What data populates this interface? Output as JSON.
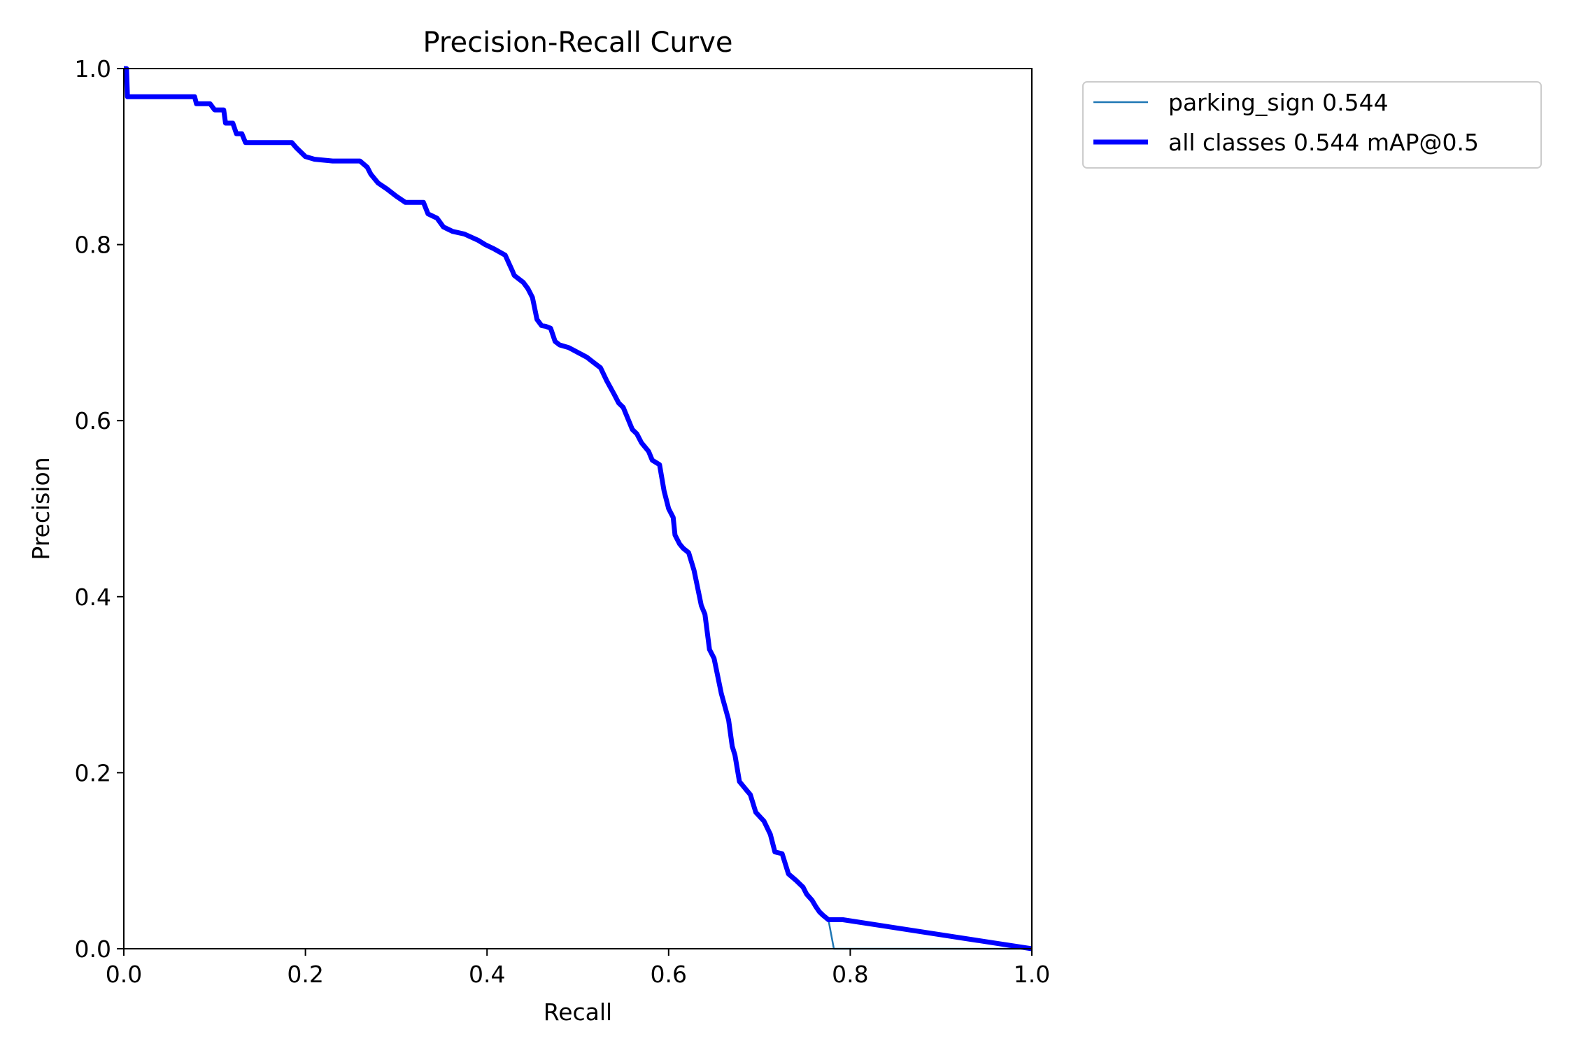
{
  "chart_data": {
    "type": "line",
    "title": "Precision-Recall Curve",
    "xlabel": "Recall",
    "ylabel": "Precision",
    "xlim": [
      0,
      1
    ],
    "ylim": [
      0,
      1
    ],
    "x_ticks": [
      "0.0",
      "0.2",
      "0.4",
      "0.6",
      "0.8",
      "1.0"
    ],
    "y_ticks": [
      "0.0",
      "0.2",
      "0.4",
      "0.6",
      "0.8",
      "1.0"
    ],
    "grid": false,
    "legend_position": "outside-upper-right",
    "series": [
      {
        "name": "parking_sign 0.544",
        "color": "#1f77b4",
        "line": "thin",
        "x": [
          0.0,
          0.003,
          0.004,
          0.006,
          0.04,
          0.078,
          0.08,
          0.095,
          0.1,
          0.11,
          0.112,
          0.12,
          0.124,
          0.13,
          0.134,
          0.15,
          0.185,
          0.19,
          0.2,
          0.21,
          0.23,
          0.26,
          0.268,
          0.272,
          0.28,
          0.29,
          0.3,
          0.31,
          0.33,
          0.335,
          0.345,
          0.352,
          0.362,
          0.375,
          0.39,
          0.398,
          0.408,
          0.42,
          0.428,
          0.43,
          0.44,
          0.445,
          0.45,
          0.455,
          0.46,
          0.465,
          0.47,
          0.475,
          0.48,
          0.49,
          0.51,
          0.515,
          0.525,
          0.532,
          0.54,
          0.545,
          0.55,
          0.56,
          0.565,
          0.57,
          0.578,
          0.582,
          0.59,
          0.595,
          0.6,
          0.605,
          0.607,
          0.612,
          0.616,
          0.622,
          0.628,
          0.632,
          0.636,
          0.64,
          0.645,
          0.65,
          0.652,
          0.658,
          0.662,
          0.666,
          0.67,
          0.673,
          0.678,
          0.682,
          0.686,
          0.69,
          0.696,
          0.705,
          0.712,
          0.717,
          0.725,
          0.732,
          0.74,
          0.748,
          0.752,
          0.758,
          0.762,
          0.766,
          0.77,
          0.776,
          0.782,
          0.787,
          0.792,
          1.0
        ],
        "y": [
          1.0,
          1.0,
          0.968,
          0.968,
          0.968,
          0.968,
          0.96,
          0.96,
          0.953,
          0.953,
          0.938,
          0.938,
          0.926,
          0.926,
          0.916,
          0.916,
          0.916,
          0.91,
          0.9,
          0.897,
          0.895,
          0.895,
          0.888,
          0.88,
          0.87,
          0.863,
          0.855,
          0.848,
          0.848,
          0.835,
          0.83,
          0.82,
          0.815,
          0.812,
          0.805,
          0.8,
          0.795,
          0.788,
          0.77,
          0.765,
          0.757,
          0.75,
          0.74,
          0.715,
          0.708,
          0.707,
          0.705,
          0.69,
          0.686,
          0.683,
          0.672,
          0.668,
          0.66,
          0.645,
          0.63,
          0.62,
          0.615,
          0.59,
          0.585,
          0.575,
          0.565,
          0.555,
          0.55,
          0.52,
          0.5,
          0.49,
          0.47,
          0.46,
          0.455,
          0.45,
          0.43,
          0.41,
          0.39,
          0.38,
          0.34,
          0.33,
          0.32,
          0.29,
          0.275,
          0.26,
          0.23,
          0.22,
          0.19,
          0.185,
          0.18,
          0.175,
          0.155,
          0.145,
          0.13,
          0.11,
          0.108,
          0.085,
          0.078,
          0.07,
          0.062,
          0.055,
          0.048,
          0.042,
          0.038,
          0.033,
          0.0,
          0.0,
          0.0,
          0.0
        ]
      },
      {
        "name": "all classes 0.544 mAP@0.5",
        "color": "#0000ff",
        "line": "thick",
        "x": [
          0.0,
          0.003,
          0.004,
          0.006,
          0.04,
          0.078,
          0.08,
          0.095,
          0.1,
          0.11,
          0.112,
          0.12,
          0.124,
          0.13,
          0.134,
          0.15,
          0.185,
          0.19,
          0.2,
          0.21,
          0.23,
          0.26,
          0.268,
          0.272,
          0.28,
          0.29,
          0.3,
          0.31,
          0.33,
          0.335,
          0.345,
          0.352,
          0.362,
          0.375,
          0.39,
          0.398,
          0.408,
          0.42,
          0.428,
          0.43,
          0.44,
          0.445,
          0.45,
          0.455,
          0.46,
          0.465,
          0.47,
          0.475,
          0.48,
          0.49,
          0.51,
          0.515,
          0.525,
          0.532,
          0.54,
          0.545,
          0.55,
          0.56,
          0.565,
          0.57,
          0.578,
          0.582,
          0.59,
          0.595,
          0.6,
          0.605,
          0.607,
          0.612,
          0.616,
          0.622,
          0.628,
          0.632,
          0.636,
          0.64,
          0.645,
          0.65,
          0.652,
          0.658,
          0.662,
          0.666,
          0.67,
          0.673,
          0.678,
          0.682,
          0.686,
          0.69,
          0.696,
          0.705,
          0.712,
          0.717,
          0.725,
          0.732,
          0.74,
          0.748,
          0.752,
          0.758,
          0.762,
          0.766,
          0.77,
          0.776,
          0.782,
          0.787,
          0.792,
          1.0
        ],
        "y": [
          1.0,
          1.0,
          0.968,
          0.968,
          0.968,
          0.968,
          0.96,
          0.96,
          0.953,
          0.953,
          0.938,
          0.938,
          0.926,
          0.926,
          0.916,
          0.916,
          0.916,
          0.91,
          0.9,
          0.897,
          0.895,
          0.895,
          0.888,
          0.88,
          0.87,
          0.863,
          0.855,
          0.848,
          0.848,
          0.835,
          0.83,
          0.82,
          0.815,
          0.812,
          0.805,
          0.8,
          0.795,
          0.788,
          0.77,
          0.765,
          0.757,
          0.75,
          0.74,
          0.715,
          0.708,
          0.707,
          0.705,
          0.69,
          0.686,
          0.683,
          0.672,
          0.668,
          0.66,
          0.645,
          0.63,
          0.62,
          0.615,
          0.59,
          0.585,
          0.575,
          0.565,
          0.555,
          0.55,
          0.52,
          0.5,
          0.49,
          0.47,
          0.46,
          0.455,
          0.45,
          0.43,
          0.41,
          0.39,
          0.38,
          0.34,
          0.33,
          0.32,
          0.29,
          0.275,
          0.26,
          0.23,
          0.22,
          0.19,
          0.185,
          0.18,
          0.175,
          0.155,
          0.145,
          0.13,
          0.11,
          0.108,
          0.085,
          0.078,
          0.07,
          0.062,
          0.055,
          0.048,
          0.042,
          0.038,
          0.033,
          0.033,
          0.033,
          0.033,
          0.0
        ]
      }
    ]
  }
}
